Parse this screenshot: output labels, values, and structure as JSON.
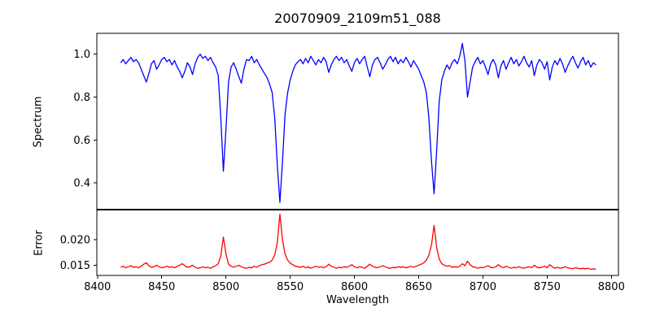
{
  "chart_data": {
    "type": "line",
    "title": "20070909_2109m51_088",
    "xlabel": "Wavelength",
    "grid": false,
    "legend": null,
    "xlim": [
      8399.5,
      8805.5
    ],
    "xticks": [
      8400,
      8450,
      8500,
      8550,
      8600,
      8650,
      8700,
      8750,
      8800
    ],
    "xtick_labels": [
      "8400",
      "8450",
      "8500",
      "8550",
      "8600",
      "8650",
      "8700",
      "8750",
      "8800"
    ],
    "x": {
      "start": 8418,
      "step": 2
    },
    "panels": [
      {
        "name": "spectrum",
        "ylabel": "Spectrum",
        "ylim": [
          0.278,
          1.097
        ],
        "yticks": [
          0.4,
          0.6,
          0.8,
          1.0
        ],
        "ytick_labels": [
          "0.4",
          "0.6",
          "0.8",
          "1.0"
        ]
      },
      {
        "name": "error",
        "ylabel": "Error",
        "ylim": [
          0.013,
          0.0258
        ],
        "yticks": [
          0.015,
          0.02
        ],
        "ytick_labels": [
          "0.015",
          "0.020"
        ]
      }
    ],
    "series": [
      {
        "name": "spectrum",
        "panel": 0,
        "color": "#0000ff",
        "y": [
          0.96,
          0.975,
          0.955,
          0.97,
          0.985,
          0.965,
          0.975,
          0.96,
          0.93,
          0.9,
          0.87,
          0.91,
          0.955,
          0.97,
          0.93,
          0.95,
          0.975,
          0.985,
          0.965,
          0.975,
          0.95,
          0.97,
          0.94,
          0.92,
          0.89,
          0.92,
          0.96,
          0.94,
          0.905,
          0.955,
          0.985,
          1.0,
          0.98,
          0.99,
          0.97,
          0.985,
          0.96,
          0.94,
          0.9,
          0.7,
          0.455,
          0.65,
          0.87,
          0.94,
          0.96,
          0.93,
          0.895,
          0.865,
          0.93,
          0.975,
          0.97,
          0.99,
          0.96,
          0.975,
          0.95,
          0.93,
          0.91,
          0.89,
          0.86,
          0.82,
          0.7,
          0.48,
          0.31,
          0.5,
          0.72,
          0.82,
          0.88,
          0.92,
          0.95,
          0.965,
          0.975,
          0.955,
          0.98,
          0.96,
          0.99,
          0.97,
          0.95,
          0.975,
          0.96,
          0.985,
          0.965,
          0.915,
          0.95,
          0.975,
          0.99,
          0.97,
          0.985,
          0.96,
          0.975,
          0.945,
          0.92,
          0.96,
          0.98,
          0.955,
          0.975,
          0.99,
          0.94,
          0.895,
          0.95,
          0.975,
          0.985,
          0.96,
          0.93,
          0.95,
          0.975,
          0.99,
          0.965,
          0.985,
          0.955,
          0.975,
          0.96,
          0.985,
          0.965,
          0.94,
          0.97,
          0.95,
          0.93,
          0.9,
          0.87,
          0.82,
          0.7,
          0.5,
          0.35,
          0.55,
          0.78,
          0.88,
          0.92,
          0.95,
          0.93,
          0.96,
          0.975,
          0.955,
          0.99,
          1.05,
          0.97,
          0.8,
          0.87,
          0.94,
          0.965,
          0.985,
          0.955,
          0.97,
          0.94,
          0.905,
          0.955,
          0.975,
          0.95,
          0.89,
          0.945,
          0.97,
          0.93,
          0.96,
          0.985,
          0.955,
          0.975,
          0.945,
          0.965,
          0.99,
          0.96,
          0.94,
          0.97,
          0.9,
          0.95,
          0.975,
          0.96,
          0.93,
          0.965,
          0.88,
          0.94,
          0.97,
          0.95,
          0.98,
          0.955,
          0.915,
          0.945,
          0.97,
          0.99,
          0.96,
          0.935,
          0.965,
          0.985,
          0.95,
          0.97,
          0.94,
          0.96,
          0.95
        ]
      },
      {
        "name": "error",
        "panel": 1,
        "color": "#ff0000",
        "y": [
          0.0146,
          0.0148,
          0.0145,
          0.0147,
          0.0149,
          0.0146,
          0.0147,
          0.0145,
          0.0148,
          0.0152,
          0.0155,
          0.0149,
          0.0146,
          0.0147,
          0.015,
          0.0147,
          0.0145,
          0.0146,
          0.0148,
          0.0146,
          0.0147,
          0.0145,
          0.0148,
          0.015,
          0.0153,
          0.0149,
          0.0146,
          0.0147,
          0.015,
          0.0146,
          0.0144,
          0.0145,
          0.0147,
          0.0145,
          0.0146,
          0.0144,
          0.0147,
          0.0149,
          0.0153,
          0.0168,
          0.0205,
          0.0172,
          0.0152,
          0.0148,
          0.0146,
          0.0148,
          0.015,
          0.0147,
          0.0145,
          0.0144,
          0.0146,
          0.0145,
          0.0148,
          0.0146,
          0.0149,
          0.0151,
          0.0152,
          0.0154,
          0.0156,
          0.016,
          0.017,
          0.0195,
          0.025,
          0.02,
          0.0172,
          0.016,
          0.0154,
          0.0151,
          0.0148,
          0.0147,
          0.0146,
          0.0148,
          0.0145,
          0.0147,
          0.0144,
          0.0146,
          0.0148,
          0.0146,
          0.0147,
          0.0145,
          0.0147,
          0.0152,
          0.0148,
          0.0146,
          0.0144,
          0.0146,
          0.0145,
          0.0147,
          0.0146,
          0.0148,
          0.0151,
          0.0147,
          0.0145,
          0.0147,
          0.0146,
          0.0144,
          0.0148,
          0.0152,
          0.0148,
          0.0146,
          0.0145,
          0.0147,
          0.0149,
          0.0147,
          0.0145,
          0.0144,
          0.0146,
          0.0145,
          0.0147,
          0.0146,
          0.0147,
          0.0145,
          0.0146,
          0.0148,
          0.0146,
          0.0148,
          0.015,
          0.0152,
          0.0155,
          0.016,
          0.017,
          0.019,
          0.0228,
          0.0185,
          0.0162,
          0.0153,
          0.015,
          0.0148,
          0.0149,
          0.0146,
          0.0147,
          0.0146,
          0.0148,
          0.0153,
          0.0149,
          0.0158,
          0.0151,
          0.0147,
          0.0146,
          0.0144,
          0.0146,
          0.0145,
          0.0147,
          0.0149,
          0.0146,
          0.0145,
          0.0147,
          0.0151,
          0.0147,
          0.0145,
          0.0148,
          0.0146,
          0.0144,
          0.0146,
          0.0145,
          0.0147,
          0.0145,
          0.0144,
          0.0146,
          0.0147,
          0.0145,
          0.015,
          0.0146,
          0.0145,
          0.0146,
          0.0148,
          0.0145,
          0.0151,
          0.0147,
          0.0144,
          0.0146,
          0.0144,
          0.0145,
          0.0147,
          0.0145,
          0.0144,
          0.0143,
          0.0145,
          0.0144,
          0.0143,
          0.0144,
          0.0143,
          0.0144,
          0.0142,
          0.0143,
          0.0142
        ]
      }
    ],
    "colors": {
      "spectrum_line": "#0000ff",
      "error_line": "#ff0000",
      "axes": "#000000",
      "background": "#ffffff"
    }
  }
}
